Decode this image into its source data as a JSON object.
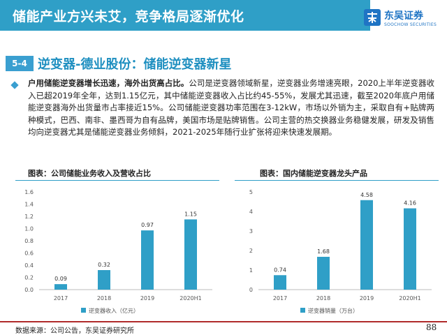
{
  "header": {
    "title": "储能产业方兴未艾，竞争格局逐渐优化"
  },
  "logo": {
    "name_cn": "东吴证券",
    "name_en": "SOOCHOW SECURITIES",
    "color": "#1f74c4"
  },
  "section": {
    "number": "5-4",
    "title": "逆变器-德业股份：储能逆变器新星"
  },
  "paragraph": {
    "lead": "户用储能逆变器增长迅速，海外出货高占比。",
    "body": "公司是逆变器领域新星，逆变器业务增速亮眼，2020上半年逆变器收入已超2019年全年，达到1.15亿元，其中储能逆变器收入占比约45-55%，发展尤其迅速，截至2020年底户用储能逆变器海外出货量市占率接近15%。公司储能逆变器功率范围在3-12kW，市场以外销为主，采取自有+贴牌两种模式，巴西、南非、墨西哥为自有品牌，美国市场是贴牌销售。公司主营的热交换器业务稳健发展，研发及销售均向逆变器尤其是储能逆变器业务倾斜，2021-2025年随行业扩张将迎来快速发展期。"
  },
  "chart_data": [
    {
      "type": "bar",
      "title": "图表：公司储能业务收入及营收占比",
      "categories": [
        "2017",
        "2018",
        "2019",
        "2020H1"
      ],
      "series": [
        {
          "name": "逆变器收入（亿元）",
          "values": [
            0.09,
            0.32,
            0.97,
            1.15
          ]
        }
      ],
      "data_labels": [
        "0.09",
        "0.32",
        "0.97",
        "1.15"
      ],
      "ylim": [
        0,
        1.6
      ],
      "yticks": [
        "0.0",
        "0.2",
        "0.4",
        "0.6",
        "0.8",
        "1.0",
        "1.2",
        "1.4",
        "1.6"
      ],
      "grid": false,
      "legend": "bottom-left",
      "color": "#2f9fc7"
    },
    {
      "type": "bar",
      "title": "图表：国内储能逆变器龙头产品",
      "categories": [
        "2017",
        "2018",
        "2019",
        "2020H1"
      ],
      "series": [
        {
          "name": "逆变器销量（万台）",
          "values": [
            0.74,
            1.68,
            4.58,
            4.16
          ]
        }
      ],
      "data_labels": [
        "0.74",
        "1.68",
        "4.58",
        "4.16"
      ],
      "ylim": [
        0,
        5
      ],
      "yticks": [
        "0",
        "1",
        "2",
        "3",
        "4",
        "5"
      ],
      "grid": false,
      "legend": "bottom-left",
      "color": "#2f9fc7"
    }
  ],
  "footer": {
    "source": "数据来源：公司公告，东吴证券研究所",
    "page": "88"
  },
  "colors": {
    "header": "#2f9fc7",
    "accent": "#1e8fc0",
    "bar": "#2f9fc7",
    "footer_line": "#b02a2a"
  }
}
